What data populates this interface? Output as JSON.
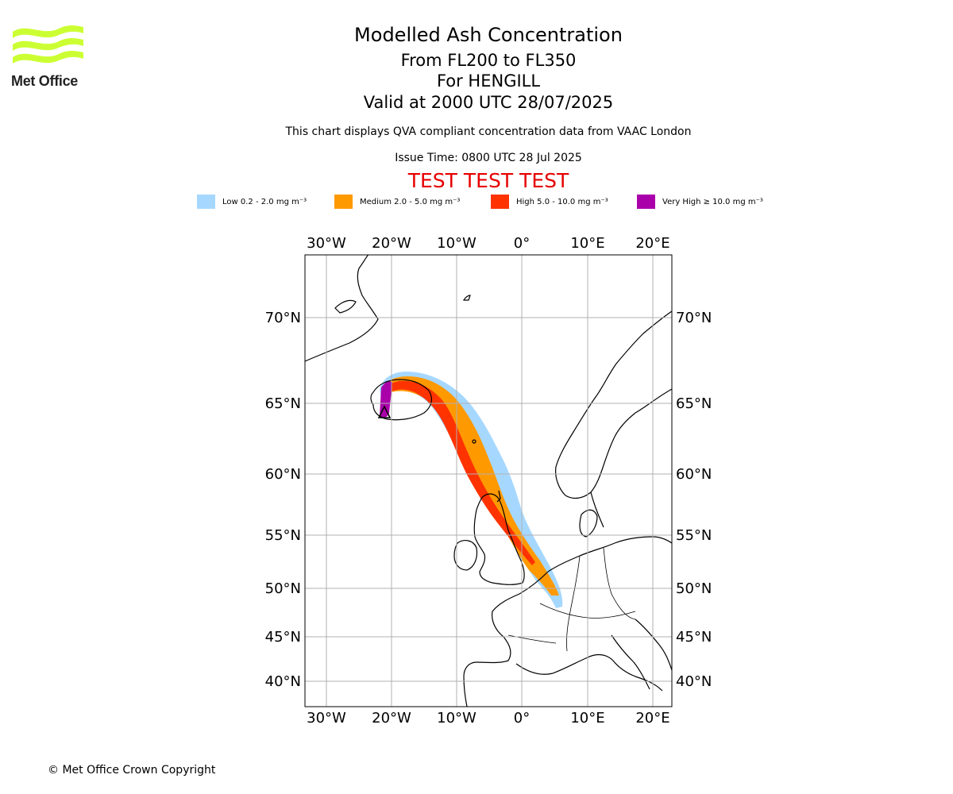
{
  "header": {
    "title": "Modelled Ash Concentration",
    "levels": "From FL200 to FL350",
    "volcano": "For HENGILL",
    "valid": "Valid at 2000 UTC 28/07/2025",
    "note": "This chart displays QVA compliant concentration data from VAAC London",
    "issue": "Issue Time: 0800 UTC 28 Jul 2025",
    "test_banner": "TEST TEST TEST"
  },
  "logo": {
    "text": "Met Office",
    "color": "#ccff33"
  },
  "legend": [
    {
      "label": "Low 0.2 - 2.0 mg m⁻³",
      "color": "#a6d8ff"
    },
    {
      "label": "Medium 2.0 - 5.0 mg m⁻³",
      "color": "#ff9900"
    },
    {
      "label": "High 5.0 - 10.0 mg m⁻³",
      "color": "#ff3300"
    },
    {
      "label": "Very High  ≥  10.0 mg m⁻³",
      "color": "#aa00aa"
    }
  ],
  "map": {
    "lon_labels": [
      "30°W",
      "20°W",
      "10°W",
      "0°",
      "10°E",
      "20°E"
    ],
    "lat_labels": [
      "70°N",
      "65°N",
      "60°N",
      "55°N",
      "50°N",
      "45°N",
      "40°N"
    ]
  },
  "footer": {
    "copyright": "© Met Office Crown Copyright"
  }
}
